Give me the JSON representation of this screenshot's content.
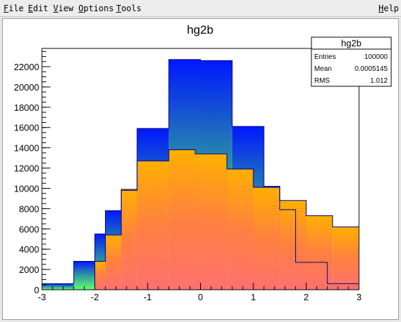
{
  "menubar": {
    "items": [
      {
        "name": "menu-file",
        "label": "File",
        "first": "F",
        "rest": "ile"
      },
      {
        "name": "menu-edit",
        "label": "Edit",
        "first": "E",
        "rest": "dit"
      },
      {
        "name": "menu-view",
        "label": "View",
        "first": "V",
        "rest": "iew"
      },
      {
        "name": "menu-options",
        "label": "Options",
        "first": "O",
        "rest": "ptions"
      },
      {
        "name": "menu-tools",
        "label": "Tools",
        "first": "T",
        "rest": "ools"
      },
      {
        "name": "menu-help",
        "label": "Help",
        "first": "H",
        "rest": "elp"
      }
    ]
  },
  "stats": {
    "title": "hg2b",
    "rows": [
      {
        "label": "Entries",
        "value": "100000"
      },
      {
        "label": "Mean",
        "value": "0.0005145"
      },
      {
        "label": "RMS",
        "value": "1.012"
      }
    ]
  },
  "chart_data": {
    "type": "bar",
    "title": "hg2b",
    "xlabel": "",
    "ylabel": "",
    "xlim": [
      -3,
      3
    ],
    "ylim": [
      0,
      23800
    ],
    "bin_width": 0.5,
    "x_ticks": [
      -3,
      -2,
      -1,
      0,
      1,
      2,
      3
    ],
    "y_ticks": [
      0,
      2000,
      4000,
      6000,
      8000,
      10000,
      12000,
      14000,
      16000,
      18000,
      20000,
      22000
    ],
    "series": [
      {
        "name": "green-blue",
        "colors": [
          "#0018ff",
          "#2f9c9c",
          "#60ff70"
        ],
        "bins": [
          {
            "x0": -3.0,
            "x1": -2.4,
            "value": 600
          },
          {
            "x0": -2.4,
            "x1": -2.0,
            "value": 2800
          },
          {
            "x0": -2.0,
            "x1": -1.8,
            "value": 5500
          },
          {
            "x0": -1.8,
            "x1": -1.5,
            "value": 7800
          },
          {
            "x0": -1.5,
            "x1": -1.2,
            "value": 9800
          },
          {
            "x0": -1.2,
            "x1": -0.6,
            "value": 15900
          },
          {
            "x0": -0.6,
            "x1": 0.0,
            "value": 22700
          },
          {
            "x0": 0.0,
            "x1": 0.6,
            "value": 22600
          },
          {
            "x0": 0.6,
            "x1": 1.2,
            "value": 16100
          },
          {
            "x0": 1.2,
            "x1": 1.5,
            "value": 10200
          },
          {
            "x0": 1.5,
            "x1": 1.8,
            "value": 7900
          },
          {
            "x0": 1.8,
            "x1": 2.4,
            "value": 2700
          },
          {
            "x0": 2.4,
            "x1": 3.0,
            "value": 600
          }
        ]
      },
      {
        "name": "orange-red",
        "colors": [
          "#ffb000",
          "#ff8040",
          "#ff7070"
        ],
        "bins": [
          {
            "x0": -2.0,
            "x1": -1.8,
            "value": 2800
          },
          {
            "x0": -1.8,
            "x1": -1.5,
            "value": 5400
          },
          {
            "x0": -1.5,
            "x1": -1.2,
            "value": 9900
          },
          {
            "x0": -1.2,
            "x1": -0.6,
            "value": 12700
          },
          {
            "x0": -0.6,
            "x1": -0.1,
            "value": 13800
          },
          {
            "x0": -0.1,
            "x1": 0.5,
            "value": 13400
          },
          {
            "x0": 0.5,
            "x1": 1.0,
            "value": 11900
          },
          {
            "x0": 1.0,
            "x1": 1.5,
            "value": 10100
          },
          {
            "x0": 1.5,
            "x1": 2.0,
            "value": 8800
          },
          {
            "x0": 2.0,
            "x1": 2.5,
            "value": 7300
          },
          {
            "x0": 2.5,
            "x1": 3.0,
            "value": 6200
          }
        ]
      }
    ]
  }
}
